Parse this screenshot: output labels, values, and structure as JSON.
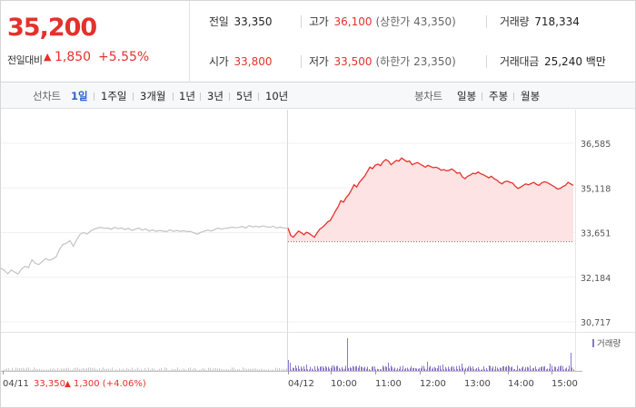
{
  "summary": {
    "current_price": "35,200",
    "change_label": "전일대비",
    "change_arrow": "▲",
    "change_value": "1,850",
    "change_rate": "+5.55%",
    "stats": [
      {
        "label": "전일",
        "value": "33,350",
        "sub": ""
      },
      {
        "label": "고가",
        "value": "36,100",
        "sub": "(상한가 43,350)"
      },
      {
        "label": "거래량",
        "value": "718,334",
        "sub": ""
      },
      {
        "label": "시가",
        "value": "33,800",
        "sub": ""
      },
      {
        "label": "저가",
        "value": "33,500",
        "sub": "(하한가 23,350)"
      },
      {
        "label": "거래대금",
        "value": "25,240 백만",
        "sub": ""
      }
    ]
  },
  "tabs": {
    "line_label": "선차트",
    "line": [
      "1일",
      "1주일",
      "3개월",
      "1년",
      "3년",
      "5년",
      "10년"
    ],
    "line_active": 0,
    "candle_label": "봉차트",
    "candle": [
      "일봉",
      "주봉",
      "월봉"
    ]
  },
  "colors": {
    "up": "#e4312b",
    "prev_day_line": "#c3c3c3",
    "area_fill": "#fde3e3",
    "volume_bar": "#8a78c8",
    "accent_tab": "#2f5fd0"
  },
  "chart_data": {
    "type": "line",
    "y_ticks": [
      "36,585",
      "35,118",
      "33,651",
      "32,184",
      "30,717"
    ],
    "y_tick_values": [
      36585,
      35118,
      33651,
      32184,
      30717
    ],
    "x_ticks": [
      "04/11",
      "04/12",
      "10:00",
      "11:00",
      "12:00",
      "13:00",
      "14:00",
      "15:00"
    ],
    "baseline": 33350,
    "series": [
      {
        "values": [
          32480,
          32410,
          32300,
          32420,
          32350,
          32290,
          32460,
          32540,
          32500,
          32760,
          32640,
          32600,
          32700,
          32800,
          32740,
          32780,
          32850,
          33100,
          33260,
          33300,
          33390,
          33200,
          33420,
          33600,
          33650,
          33600,
          33700,
          33760,
          33800,
          33820,
          33790,
          33800,
          33760,
          33820,
          33780,
          33800,
          33750,
          33790,
          33720,
          33760,
          33800,
          33730,
          33770,
          33700,
          33740,
          33690,
          33720,
          33700,
          33680,
          33740,
          33690,
          33720,
          33690,
          33710,
          33680,
          33690,
          33640,
          33600,
          33660,
          33700,
          33730,
          33700,
          33750,
          33800,
          33760,
          33790,
          33800,
          33830,
          33810,
          33820,
          33850,
          33800,
          33880,
          33840,
          33860,
          33830,
          33870,
          33840,
          33820,
          33860,
          33800,
          33830,
          33800,
          33790
        ]
      },
      {
        "values": [
          33800,
          33560,
          33500,
          33600,
          33700,
          33650,
          33580,
          33660,
          33620,
          33560,
          33500,
          33640,
          33760,
          33820,
          33900,
          34000,
          34050,
          34200,
          34360,
          34500,
          34700,
          34650,
          34800,
          34900,
          35050,
          35220,
          35150,
          35300,
          35400,
          35500,
          35650,
          35800,
          35750,
          35860,
          35900,
          35850,
          35980,
          36050,
          36000,
          35880,
          35950,
          36020,
          36000,
          36100,
          36040,
          35980,
          36000,
          35880,
          35920,
          35950,
          35900,
          35850,
          35800,
          35860,
          35820,
          35780,
          35800,
          35760,
          35700,
          35720,
          35680,
          35700,
          35740,
          35680,
          35600,
          35620,
          35480,
          35420,
          35500,
          35540,
          35600,
          35580,
          35640,
          35580,
          35550,
          35500,
          35450,
          35500,
          35420,
          35380,
          35300,
          35250,
          35320,
          35340,
          35300,
          35280,
          35180,
          35100,
          35140,
          35200,
          35250,
          35220,
          35260,
          35300,
          35240,
          35200,
          35280,
          35320,
          35300,
          35250,
          35200,
          35150,
          35080,
          35100,
          35160,
          35200,
          35300,
          35250,
          35200
        ]
      }
    ],
    "volume": {
      "legend": "거래량"
    },
    "footer_prev_price": "33,350",
    "footer_prev_arrow": "▲",
    "footer_prev_change": "1,300 (+4.06%)"
  }
}
